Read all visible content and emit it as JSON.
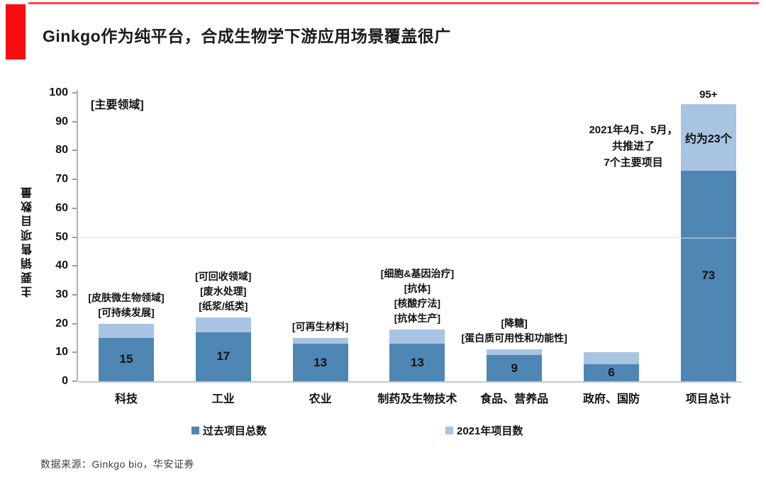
{
  "page": {
    "title": "Ginkgo作为纯平台，合成生物学下游应用场景覆盖很广",
    "source": "数据来源：Ginkgo bio，华安证券"
  },
  "chart_data": {
    "type": "bar",
    "stacked": true,
    "plot_note": "[主要领域]",
    "ylabel": "主要销售项目数量",
    "ylim": [
      0,
      100
    ],
    "ytick_step": 10,
    "gridline_at": 50,
    "grid": "single horizontal line at 50",
    "legend_position": "bottom",
    "categories": [
      "科技",
      "工业",
      "农业",
      "制药及生物技术",
      "食品、营养品",
      "政府、国防",
      "项目总计"
    ],
    "series": [
      {
        "name": "过去项目总数",
        "color": "#4e86b4",
        "values": [
          15,
          17,
          13,
          13,
          9,
          6,
          73
        ]
      },
      {
        "name": "2021年项目数",
        "color": "#a9c3e2",
        "values": [
          5,
          5,
          2,
          5,
          2,
          4,
          23
        ]
      }
    ],
    "value_labels": [
      "15",
      "17",
      "13",
      "13",
      "9",
      "6",
      "73"
    ],
    "total_labels": [
      "",
      "",
      "",
      "",
      "",
      "",
      "95+"
    ],
    "segment_labels": [
      "",
      "",
      "",
      "",
      "",
      "",
      "约为23个"
    ],
    "annotations": [
      [
        "[皮肤微生物领域]",
        "[可持续发展]"
      ],
      [
        "[可回收领域]",
        "[废水处理]",
        "[纸浆/纸类]"
      ],
      [
        "[可再生材料]"
      ],
      [
        "[细胞&基因治疗]",
        "[抗体]",
        "[核酸疗法]",
        "[抗体生产]"
      ],
      [
        "[降糖]",
        "[蛋白质可用性和功能性]"
      ],
      [],
      []
    ],
    "side_note": [
      "2021年4月、5月，",
      "共推进了",
      "7个主要项目"
    ],
    "colors": {
      "past": "#4e86b4",
      "year2021": "#a9c3e2",
      "accent_red": "#f70d0d"
    }
  }
}
